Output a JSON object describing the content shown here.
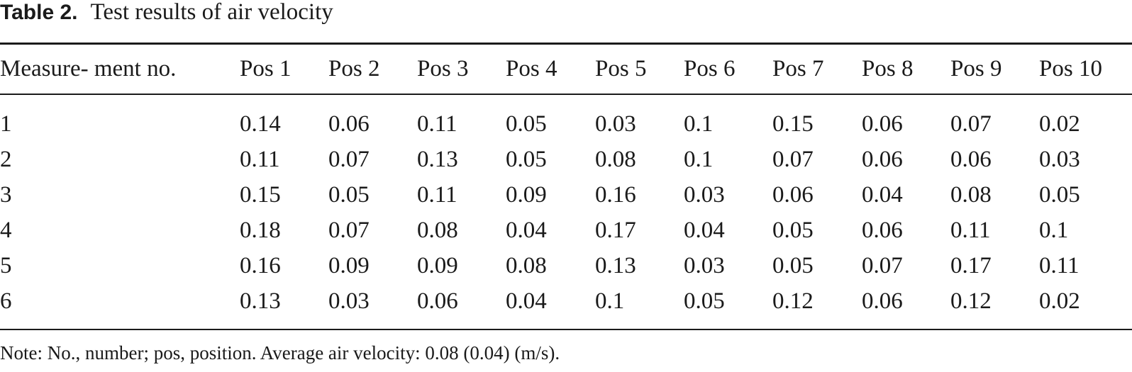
{
  "caption": {
    "label": "Table 2.",
    "title": "Test results of air velocity"
  },
  "table": {
    "headers": [
      "Measure- ment no.",
      "Pos 1",
      "Pos 2",
      "Pos 3",
      "Pos 4",
      "Pos 5",
      "Pos 6",
      "Pos 7",
      "Pos 8",
      "Pos 9",
      "Pos 10"
    ],
    "rows": [
      [
        "1",
        "0.14",
        "0.06",
        "0.11",
        "0.05",
        "0.03",
        "0.1",
        "0.15",
        "0.06",
        "0.07",
        "0.02"
      ],
      [
        "2",
        "0.11",
        "0.07",
        "0.13",
        "0.05",
        "0.08",
        "0.1",
        "0.07",
        "0.06",
        "0.06",
        "0.03"
      ],
      [
        "3",
        "0.15",
        "0.05",
        "0.11",
        "0.09",
        "0.16",
        "0.03",
        "0.06",
        "0.04",
        "0.08",
        "0.05"
      ],
      [
        "4",
        "0.18",
        "0.07",
        "0.08",
        "0.04",
        "0.17",
        "0.04",
        "0.05",
        "0.06",
        "0.11",
        "0.1"
      ],
      [
        "5",
        "0.16",
        "0.09",
        "0.09",
        "0.08",
        "0.13",
        "0.03",
        "0.05",
        "0.07",
        "0.17",
        "0.11"
      ],
      [
        "6",
        "0.13",
        "0.03",
        "0.06",
        "0.04",
        "0.1",
        "0.05",
        "0.12",
        "0.06",
        "0.12",
        "0.02"
      ]
    ]
  },
  "note": "Note: No., number; pos, position. Average air velocity: 0.08 (0.04) (m/s)."
}
